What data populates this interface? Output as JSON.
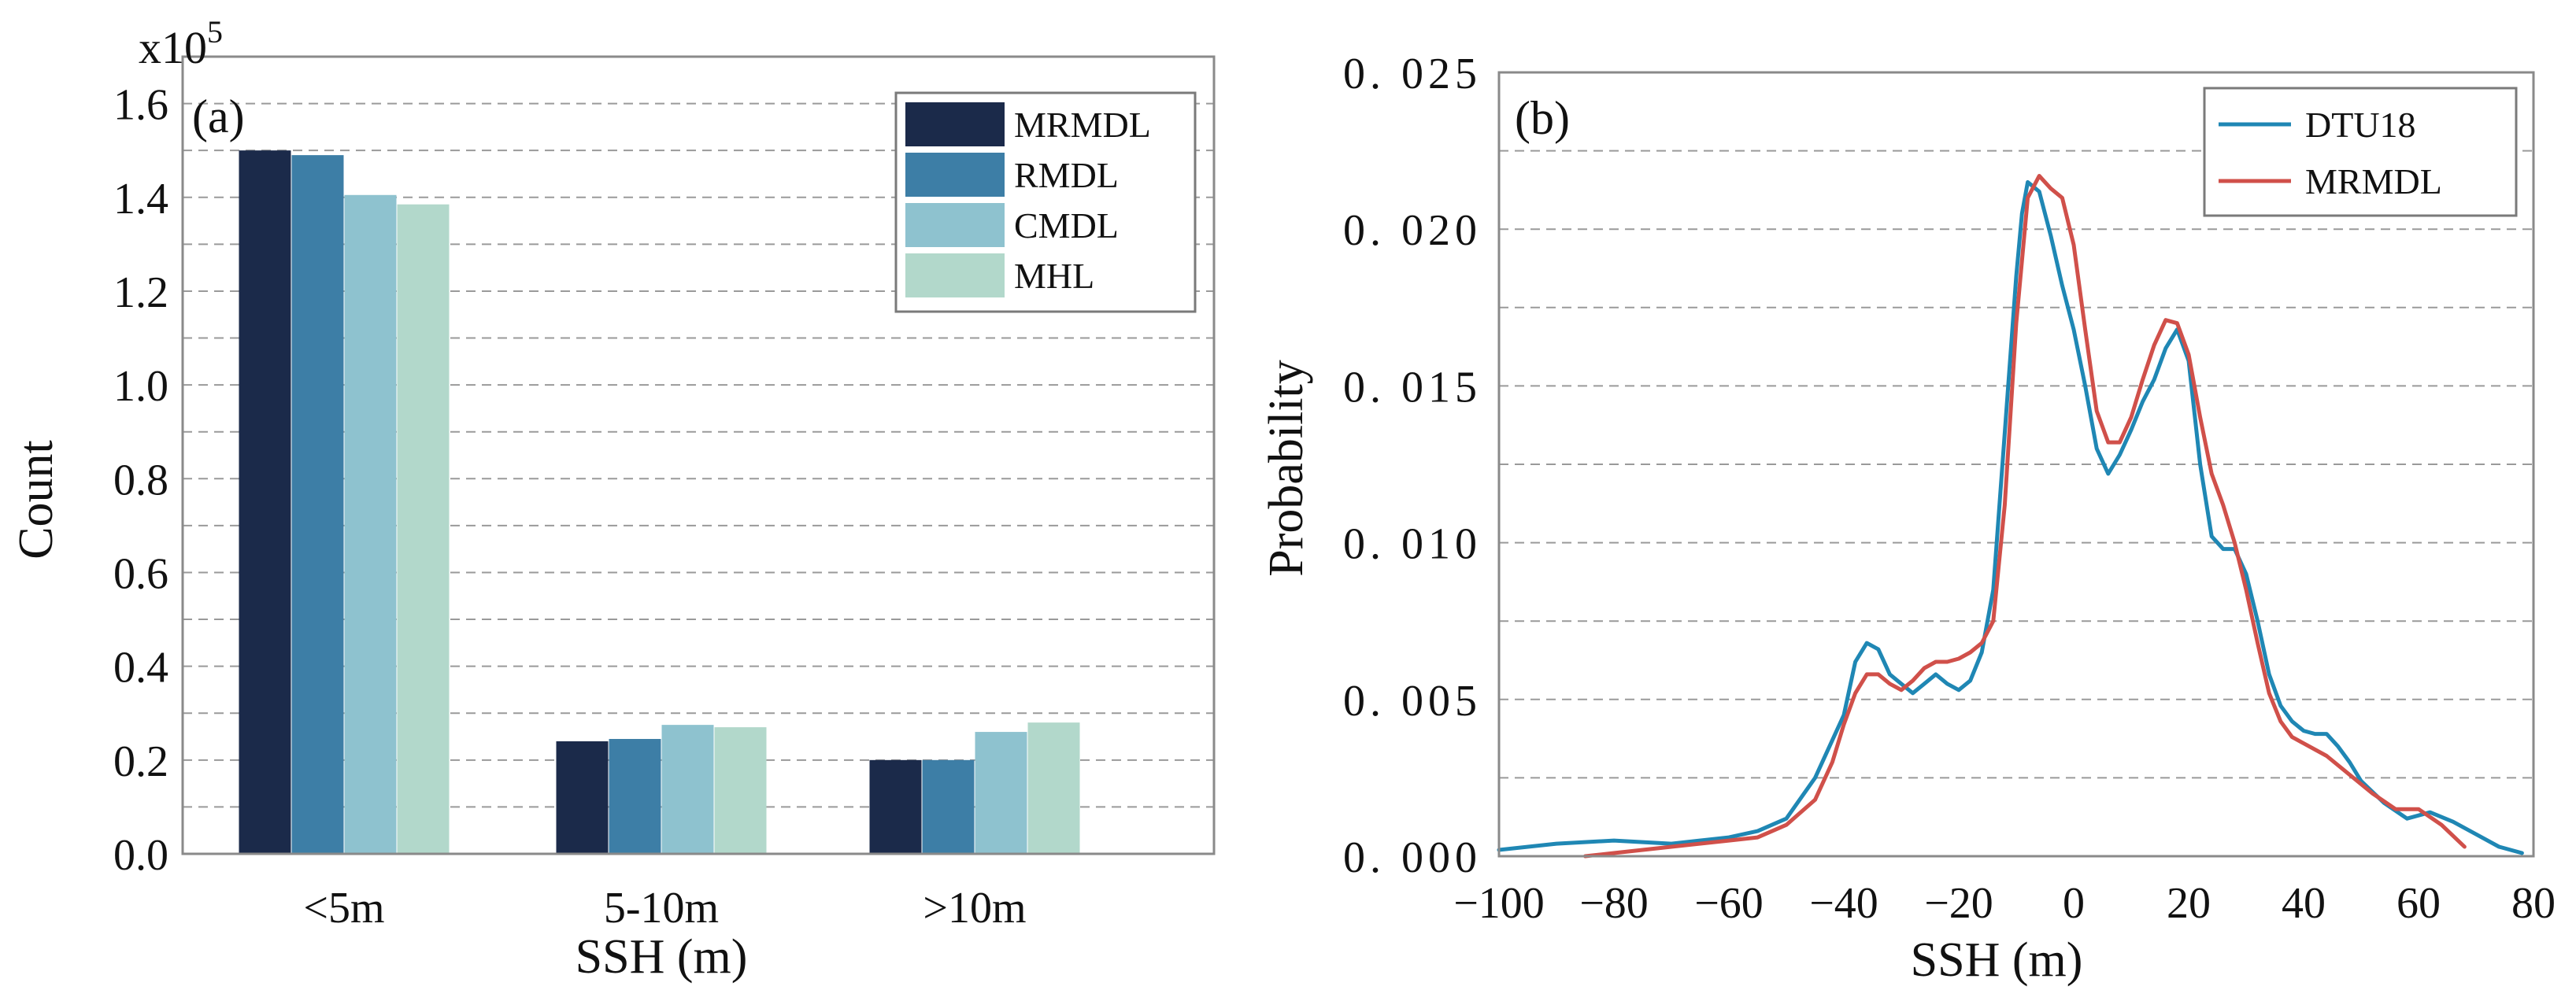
{
  "chart_data": [
    {
      "type": "bar",
      "panel_label": "(a)",
      "multiplier": {
        "base": "x10",
        "exponent": "5"
      },
      "categories": [
        "<5m",
        "5-10m",
        ">10m"
      ],
      "series": [
        {
          "name": "MRMDL",
          "color": "#1b2a4a",
          "values": [
            1.5,
            0.24,
            0.2
          ]
        },
        {
          "name": "RMDL",
          "color": "#3d7ea6",
          "values": [
            1.49,
            0.245,
            0.2
          ]
        },
        {
          "name": "CMDL",
          "color": "#8ec2cf",
          "values": [
            1.405,
            0.275,
            0.26
          ]
        },
        {
          "name": "MHL",
          "color": "#b2d8cb",
          "values": [
            1.385,
            0.27,
            0.28
          ]
        }
      ],
      "xlabel": "SSH (m)",
      "ylabel": "Count",
      "ylim": [
        0.0,
        1.7
      ],
      "yticks": [
        "0.0",
        "0.2",
        "0.4",
        "0.6",
        "0.8",
        "1.0",
        "1.2",
        "1.4",
        "1.6"
      ],
      "grid": "horizontal dashed",
      "legend": "top-right"
    },
    {
      "type": "line",
      "panel_label": "(b)",
      "xlabel": "SSH (m)",
      "ylabel": "Probability",
      "xlim": [
        -100,
        80
      ],
      "ylim": [
        0.0,
        0.025
      ],
      "xticks": [
        "−100",
        "−80",
        "−60",
        "−40",
        "−20",
        "0",
        "20",
        "40",
        "60",
        "80"
      ],
      "yticks": [
        "0. 000",
        "0. 005",
        "0. 010",
        "0. 015",
        "0. 020",
        "0. 025"
      ],
      "grid": "horizontal dashed",
      "legend": "top-right",
      "series": [
        {
          "name": "DTU18",
          "color": "#1f87b4",
          "x": [
            -100,
            -90,
            -80,
            -70,
            -60,
            -55,
            -50,
            -45,
            -40,
            -38,
            -36,
            -34,
            -32,
            -30,
            -28,
            -26,
            -24,
            -22,
            -20,
            -18,
            -16,
            -14,
            -12,
            -10,
            -9,
            -8,
            -6,
            -4,
            -2,
            0,
            2,
            4,
            6,
            8,
            10,
            12,
            14,
            16,
            18,
            20,
            22,
            24,
            26,
            28,
            30,
            32,
            34,
            36,
            38,
            40,
            42,
            44,
            46,
            48,
            50,
            54,
            58,
            62,
            66,
            70,
            74,
            78
          ],
          "y": [
            0.0002,
            0.0004,
            0.0005,
            0.0004,
            0.0006,
            0.0008,
            0.0012,
            0.0025,
            0.0045,
            0.0062,
            0.0068,
            0.0066,
            0.0058,
            0.0055,
            0.0052,
            0.0055,
            0.0058,
            0.0055,
            0.0053,
            0.0056,
            0.0065,
            0.0085,
            0.0135,
            0.0185,
            0.0205,
            0.0215,
            0.0212,
            0.0198,
            0.0182,
            0.0168,
            0.015,
            0.013,
            0.0122,
            0.0128,
            0.0136,
            0.0145,
            0.0152,
            0.0162,
            0.0168,
            0.0158,
            0.0125,
            0.0102,
            0.0098,
            0.0098,
            0.009,
            0.0075,
            0.0058,
            0.0048,
            0.0043,
            0.004,
            0.0039,
            0.0039,
            0.0035,
            0.003,
            0.0024,
            0.0017,
            0.0012,
            0.0014,
            0.0011,
            0.0007,
            0.0003,
            0.0001
          ]
        },
        {
          "name": "MRMDL",
          "color": "#d0504a",
          "x": [
            -85,
            -80,
            -70,
            -60,
            -55,
            -50,
            -45,
            -42,
            -40,
            -38,
            -36,
            -34,
            -32,
            -30,
            -28,
            -26,
            -24,
            -22,
            -20,
            -18,
            -16,
            -14,
            -12,
            -10,
            -8,
            -6,
            -4,
            -2,
            0,
            2,
            4,
            6,
            8,
            10,
            12,
            14,
            16,
            18,
            20,
            22,
            24,
            26,
            28,
            30,
            32,
            34,
            36,
            38,
            40,
            44,
            48,
            52,
            56,
            60,
            64,
            68
          ],
          "y": [
            0.0,
            0.0001,
            0.0003,
            0.0005,
            0.0006,
            0.001,
            0.0018,
            0.003,
            0.0042,
            0.0052,
            0.0058,
            0.0058,
            0.0055,
            0.0053,
            0.0056,
            0.006,
            0.0062,
            0.0062,
            0.0063,
            0.0065,
            0.0068,
            0.0075,
            0.0112,
            0.017,
            0.021,
            0.0217,
            0.0213,
            0.021,
            0.0195,
            0.0168,
            0.0142,
            0.0132,
            0.0132,
            0.014,
            0.0152,
            0.0163,
            0.0171,
            0.017,
            0.016,
            0.014,
            0.0122,
            0.0112,
            0.01,
            0.0085,
            0.0068,
            0.0052,
            0.0043,
            0.0038,
            0.0036,
            0.0032,
            0.0026,
            0.002,
            0.0015,
            0.0015,
            0.001,
            0.0003
          ]
        }
      ]
    }
  ]
}
